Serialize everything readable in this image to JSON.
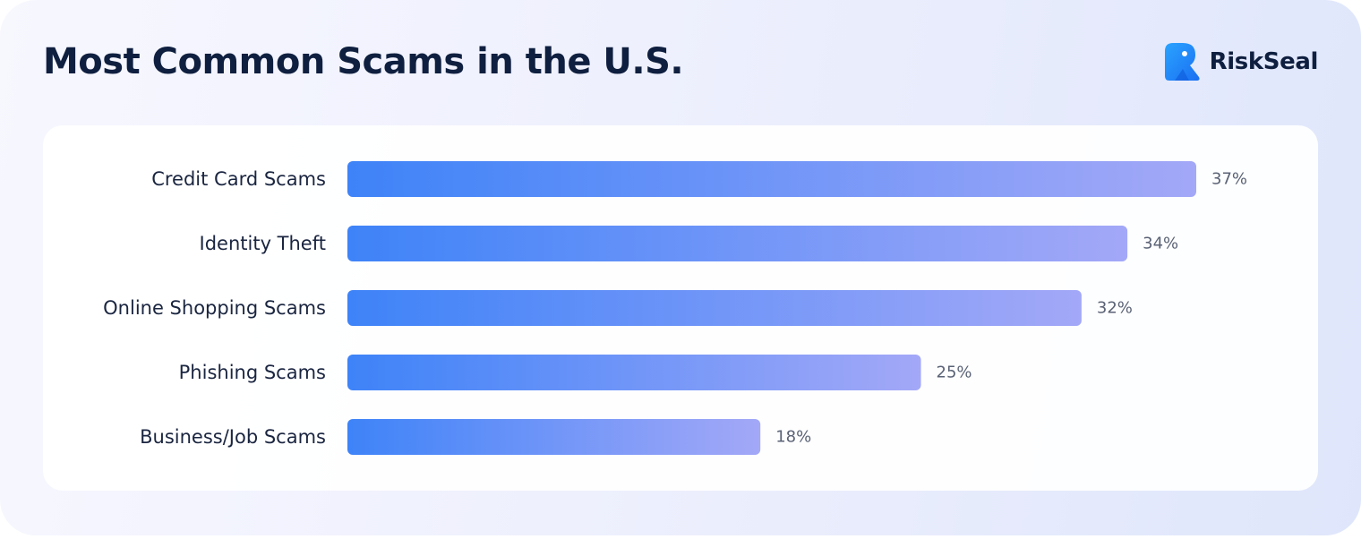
{
  "header": {
    "title": "Most Common Scams in the U.S.",
    "brand": "RiskSeal"
  },
  "colors": {
    "bar_start": "#3e83f8",
    "bar_end": "#a3a8f7",
    "title": "#0f1f3f",
    "label": "#1a2540",
    "value_label": "#5a6275",
    "brand_blue": "#1e90ff"
  },
  "chart_data": {
    "type": "bar",
    "orientation": "horizontal",
    "categories": [
      "Credit Card Scams",
      "Identity Theft",
      "Online Shopping Scams",
      "Phishing Scams",
      "Business/Job Scams"
    ],
    "values": [
      37,
      34,
      32,
      25,
      18
    ],
    "value_labels": [
      "37%",
      "34%",
      "32%",
      "25%",
      "18%"
    ],
    "unit": "%",
    "xlim": [
      0,
      37
    ],
    "grid": false,
    "legend": "none"
  }
}
